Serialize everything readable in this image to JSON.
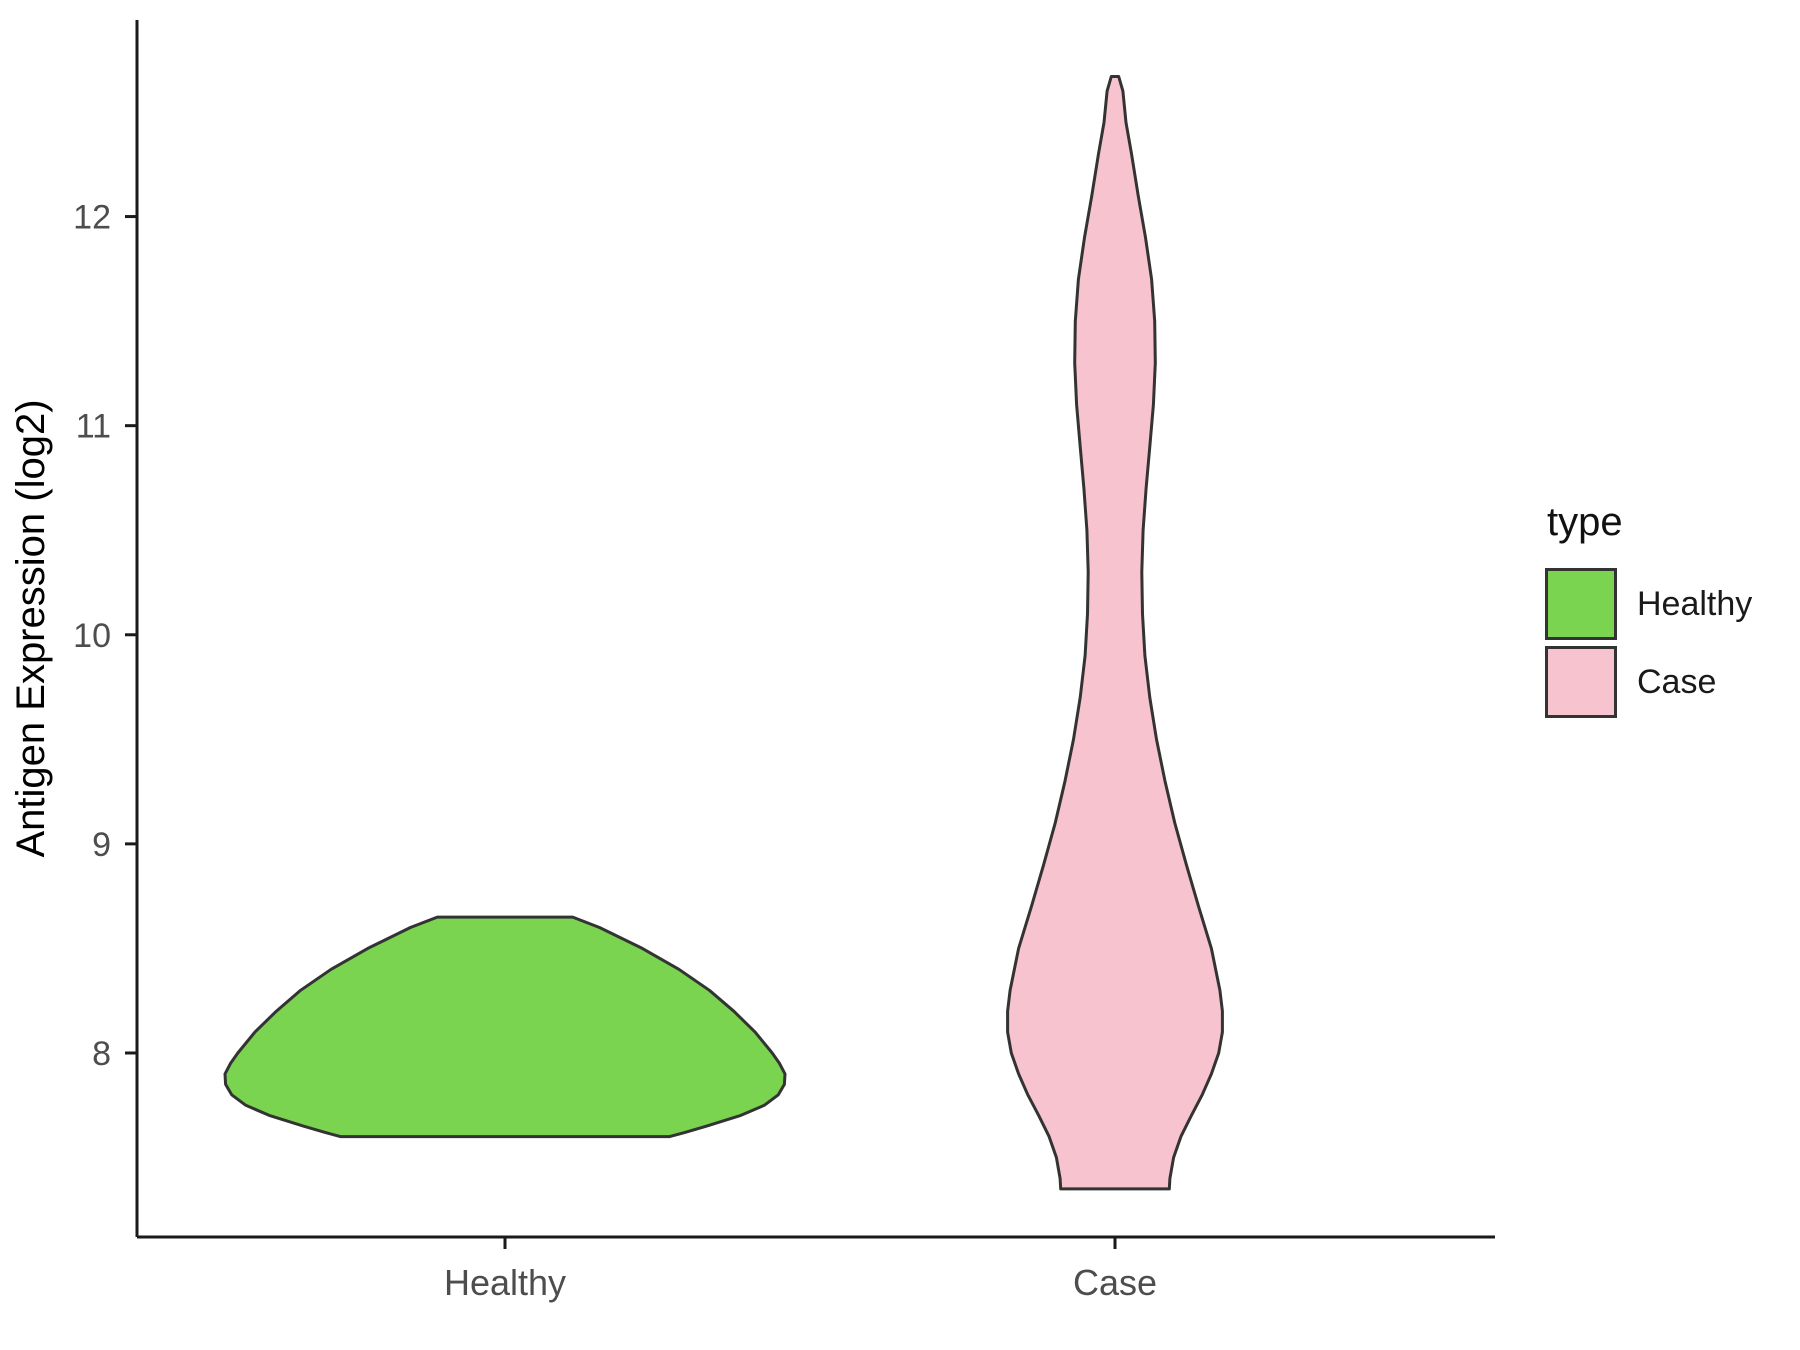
{
  "legend": {
    "title": "type",
    "items": [
      {
        "label": "Healthy",
        "color": "#7BD44F"
      },
      {
        "label": "Case",
        "color": "#F6C3CF"
      }
    ]
  },
  "chart_data": {
    "type": "violin",
    "title": "",
    "xlabel": "",
    "ylabel": "Antigen Expression (log2)",
    "categories": [
      "Healthy",
      "Case"
    ],
    "y_ticks": [
      8,
      9,
      10,
      11,
      12
    ],
    "ylim": [
      7.12,
      12.94
    ],
    "grid": false,
    "legend_position": "right",
    "colors": {
      "axis": "#1a1a1a",
      "tick_label": "#4d4d4d",
      "outline": "#333333"
    },
    "series": [
      {
        "name": "Healthy",
        "fill": "#7BD44F",
        "range": [
          7.6,
          8.65
        ],
        "profile": [
          [
            8.65,
            0.111
          ],
          [
            8.6,
            0.155
          ],
          [
            8.5,
            0.225
          ],
          [
            8.4,
            0.285
          ],
          [
            8.3,
            0.335
          ],
          [
            8.2,
            0.375
          ],
          [
            8.1,
            0.41
          ],
          [
            8.0,
            0.438
          ],
          [
            7.95,
            0.45
          ],
          [
            7.9,
            0.459
          ],
          [
            7.85,
            0.458
          ],
          [
            7.8,
            0.448
          ],
          [
            7.75,
            0.425
          ],
          [
            7.7,
            0.385
          ],
          [
            7.65,
            0.33
          ],
          [
            7.62,
            0.295
          ],
          [
            7.6,
            0.27
          ]
        ]
      },
      {
        "name": "Case",
        "fill": "#F6C3CF",
        "range": [
          7.35,
          12.67
        ],
        "profile": [
          [
            12.67,
            0.006
          ],
          [
            12.6,
            0.013
          ],
          [
            12.45,
            0.018
          ],
          [
            12.3,
            0.027
          ],
          [
            12.1,
            0.038
          ],
          [
            11.9,
            0.05
          ],
          [
            11.7,
            0.06
          ],
          [
            11.5,
            0.065
          ],
          [
            11.3,
            0.066
          ],
          [
            11.1,
            0.063
          ],
          [
            10.9,
            0.057
          ],
          [
            10.7,
            0.051
          ],
          [
            10.5,
            0.046
          ],
          [
            10.3,
            0.044
          ],
          [
            10.1,
            0.045
          ],
          [
            9.9,
            0.049
          ],
          [
            9.7,
            0.057
          ],
          [
            9.5,
            0.068
          ],
          [
            9.3,
            0.082
          ],
          [
            9.1,
            0.098
          ],
          [
            8.9,
            0.117
          ],
          [
            8.7,
            0.137
          ],
          [
            8.5,
            0.158
          ],
          [
            8.3,
            0.172
          ],
          [
            8.2,
            0.176
          ],
          [
            8.1,
            0.176
          ],
          [
            8.0,
            0.17
          ],
          [
            7.9,
            0.158
          ],
          [
            7.8,
            0.143
          ],
          [
            7.7,
            0.125
          ],
          [
            7.6,
            0.108
          ],
          [
            7.5,
            0.096
          ],
          [
            7.4,
            0.09
          ],
          [
            7.35,
            0.089
          ]
        ]
      }
    ]
  }
}
